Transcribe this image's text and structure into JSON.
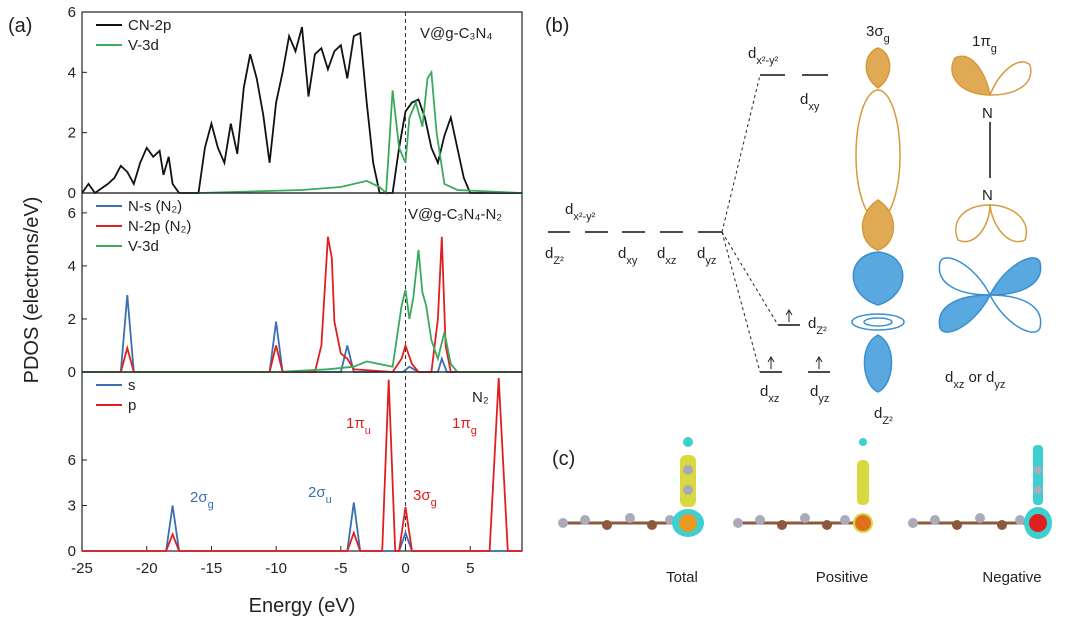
{
  "figure": {
    "panel_labels": [
      "(a)",
      "(b)",
      "(c)"
    ],
    "ylabel": "PDOS (electrons/eV)",
    "xlabel": "Energy (eV)"
  },
  "chart_data": [
    {
      "type": "line",
      "title": "V@g-C₃N₄",
      "xlim": [
        -25,
        9
      ],
      "ylim": [
        0,
        6
      ],
      "yticks": [
        0,
        2,
        4,
        6
      ],
      "series": [
        {
          "name": "CN-2p",
          "color": "#111111",
          "x": [
            -25,
            -24.5,
            -24,
            -23,
            -22.5,
            -22,
            -21.5,
            -21,
            -20.5,
            -20,
            -19.5,
            -19,
            -18.7,
            -18.3,
            -18,
            -17.5,
            -16,
            -15.5,
            -15,
            -14.5,
            -14,
            -13.5,
            -13,
            -12.5,
            -12,
            -11.5,
            -11,
            -10.5,
            -10,
            -9.5,
            -9,
            -8.5,
            -8,
            -7.5,
            -7,
            -6.5,
            -6,
            -5.5,
            -5,
            -4.5,
            -4,
            -3.5,
            -3,
            -2.5,
            -2,
            -1,
            -0.5,
            0,
            0.5,
            1,
            1.5,
            2,
            2.5,
            3,
            3.5,
            4,
            4.5,
            5,
            9
          ],
          "values": [
            0,
            0.3,
            0,
            0.3,
            0.5,
            0.9,
            0.7,
            0.3,
            1.0,
            1.5,
            1.2,
            1.4,
            0.6,
            1.2,
            0.3,
            0,
            0,
            1.5,
            2.3,
            1.5,
            1.0,
            2.3,
            1.3,
            3.5,
            4.6,
            3.8,
            2.6,
            1.0,
            3.0,
            4.0,
            5.2,
            4.7,
            5.5,
            3.2,
            4.6,
            4.8,
            4.1,
            4.7,
            4.9,
            3.8,
            5.2,
            5.3,
            3.0,
            1.0,
            0,
            0,
            1.5,
            2.7,
            3.0,
            3.1,
            2.5,
            1.5,
            1.0,
            1.9,
            2.5,
            1.5,
            0.5,
            0,
            0
          ]
        },
        {
          "name": "V-3d",
          "color": "#3aaa5c",
          "x": [
            -16,
            -8,
            -5,
            -3,
            -2,
            -1.5,
            -1,
            -0.5,
            0,
            0.3,
            0.8,
            1.3,
            1.7,
            2,
            2.4,
            3,
            4,
            9
          ],
          "values": [
            0,
            0.1,
            0.2,
            0.4,
            0.2,
            0,
            3.4,
            1.5,
            1.0,
            2.5,
            3.0,
            2.2,
            3.8,
            4.0,
            2.0,
            0.3,
            0.1,
            0
          ]
        }
      ],
      "annotations": []
    },
    {
      "type": "line",
      "title": "V@g-C₃N₄-N₂",
      "xlim": [
        -25,
        9
      ],
      "ylim": [
        0,
        6.75
      ],
      "yticks": [
        0,
        2,
        4,
        6
      ],
      "series": [
        {
          "name": "N-s (N₂)",
          "color": "#3a6fb0",
          "x": [
            -25,
            -22,
            -21.5,
            -21,
            -10.5,
            -10,
            -9.5,
            -5,
            -4.5,
            -4,
            -0.2,
            0.3,
            1,
            2.5,
            2.8,
            3.2,
            9
          ],
          "values": [
            0,
            0,
            2.9,
            0,
            0,
            1.9,
            0,
            0,
            1.0,
            0,
            0,
            0.2,
            0,
            0,
            0.5,
            0,
            0
          ]
        },
        {
          "name": "N-2p (N₂)",
          "color": "#e02020",
          "x": [
            -25,
            -22,
            -21.5,
            -21,
            -10.5,
            -10,
            -9.5,
            -7,
            -6.5,
            -6,
            -5.7,
            -5.5,
            -5,
            -4.5,
            -4,
            -1,
            -0.3,
            0,
            0.5,
            1,
            2,
            2.5,
            2.8,
            3.1,
            3.5,
            9
          ],
          "values": [
            0,
            0,
            0.9,
            0,
            0,
            1.0,
            0,
            0,
            1.0,
            5.1,
            4.3,
            1.9,
            0.7,
            0.5,
            0.1,
            0,
            0.5,
            1.0,
            0.3,
            0,
            0,
            2.0,
            5.1,
            1.0,
            0,
            0
          ]
        },
        {
          "name": "V-3d",
          "color": "#3aaa5c",
          "x": [
            -25,
            -10,
            -6,
            -4,
            -3,
            -1,
            -0.3,
            0,
            0.3,
            0.6,
            1,
            1.3,
            1.6,
            2,
            2.5,
            3,
            3.5,
            4,
            9
          ],
          "values": [
            0,
            0,
            0.1,
            0.2,
            0.4,
            0.2,
            2.5,
            3.1,
            2.0,
            2.8,
            4.6,
            3.0,
            2.5,
            1.2,
            0.5,
            1.5,
            0.3,
            0,
            0
          ]
        }
      ],
      "annotations": []
    },
    {
      "type": "line",
      "title": "N₂",
      "xlim": [
        -25,
        9
      ],
      "ylim": [
        0,
        11.8
      ],
      "yticks": [
        0,
        3,
        6
      ],
      "xticks": [
        -25,
        -20,
        -15,
        -10,
        -5,
        0,
        5
      ],
      "series": [
        {
          "name": "s",
          "color": "#3a6fb0",
          "x": [
            -25,
            -18.5,
            -18,
            -17.5,
            -4.5,
            -4,
            -3.5,
            -0.5,
            0,
            0.5,
            9
          ],
          "values": [
            0,
            0,
            3.0,
            0,
            0,
            3.2,
            0,
            0,
            1.2,
            0,
            0
          ]
        },
        {
          "name": "p",
          "color": "#e02020",
          "x": [
            -25,
            -18.5,
            -18,
            -17.5,
            -4.5,
            -4,
            -3.5,
            -1.8,
            -1.3,
            -0.8,
            -0.5,
            0,
            0.5,
            6.5,
            7.2,
            7.9,
            9
          ],
          "values": [
            0,
            0,
            1.1,
            0,
            0,
            1.2,
            0,
            0,
            11.3,
            0,
            0,
            2.9,
            0,
            0,
            11.4,
            0,
            0
          ]
        }
      ],
      "annotations": [
        {
          "parts": [
            "2σ",
            "g"
          ],
          "color": "#3a6fb0"
        },
        {
          "parts": [
            "2σ",
            "u"
          ],
          "color": "#3a6fb0"
        },
        {
          "parts": [
            "1π",
            "u"
          ],
          "color": "#e02020"
        },
        {
          "parts": [
            "3σ",
            "g"
          ],
          "color": "#e02020"
        },
        {
          "parts": [
            "1π",
            "g"
          ],
          "color": "#e02020"
        }
      ]
    }
  ],
  "diagram": {
    "labels": [
      [
        "d",
        "x²-y²"
      ],
      [
        "d",
        "Z²"
      ],
      [
        "d",
        "xy"
      ],
      [
        "d",
        "xz"
      ],
      [
        "d",
        "yz"
      ],
      [
        "d",
        "x²-y²"
      ],
      [
        "d",
        "xy"
      ],
      [
        "d",
        "Z²"
      ],
      [
        "d",
        "xz"
      ],
      [
        "d",
        "yz"
      ],
      [
        "3σ",
        "g"
      ],
      [
        "1π",
        "g"
      ],
      [
        "d",
        "Z²"
      ],
      [
        "d",
        "xz",
        " or d",
        "yz"
      ],
      [
        "N"
      ],
      [
        "N"
      ]
    ]
  },
  "structures": {
    "labels": [
      "Total",
      "Positive",
      "Negative"
    ]
  }
}
